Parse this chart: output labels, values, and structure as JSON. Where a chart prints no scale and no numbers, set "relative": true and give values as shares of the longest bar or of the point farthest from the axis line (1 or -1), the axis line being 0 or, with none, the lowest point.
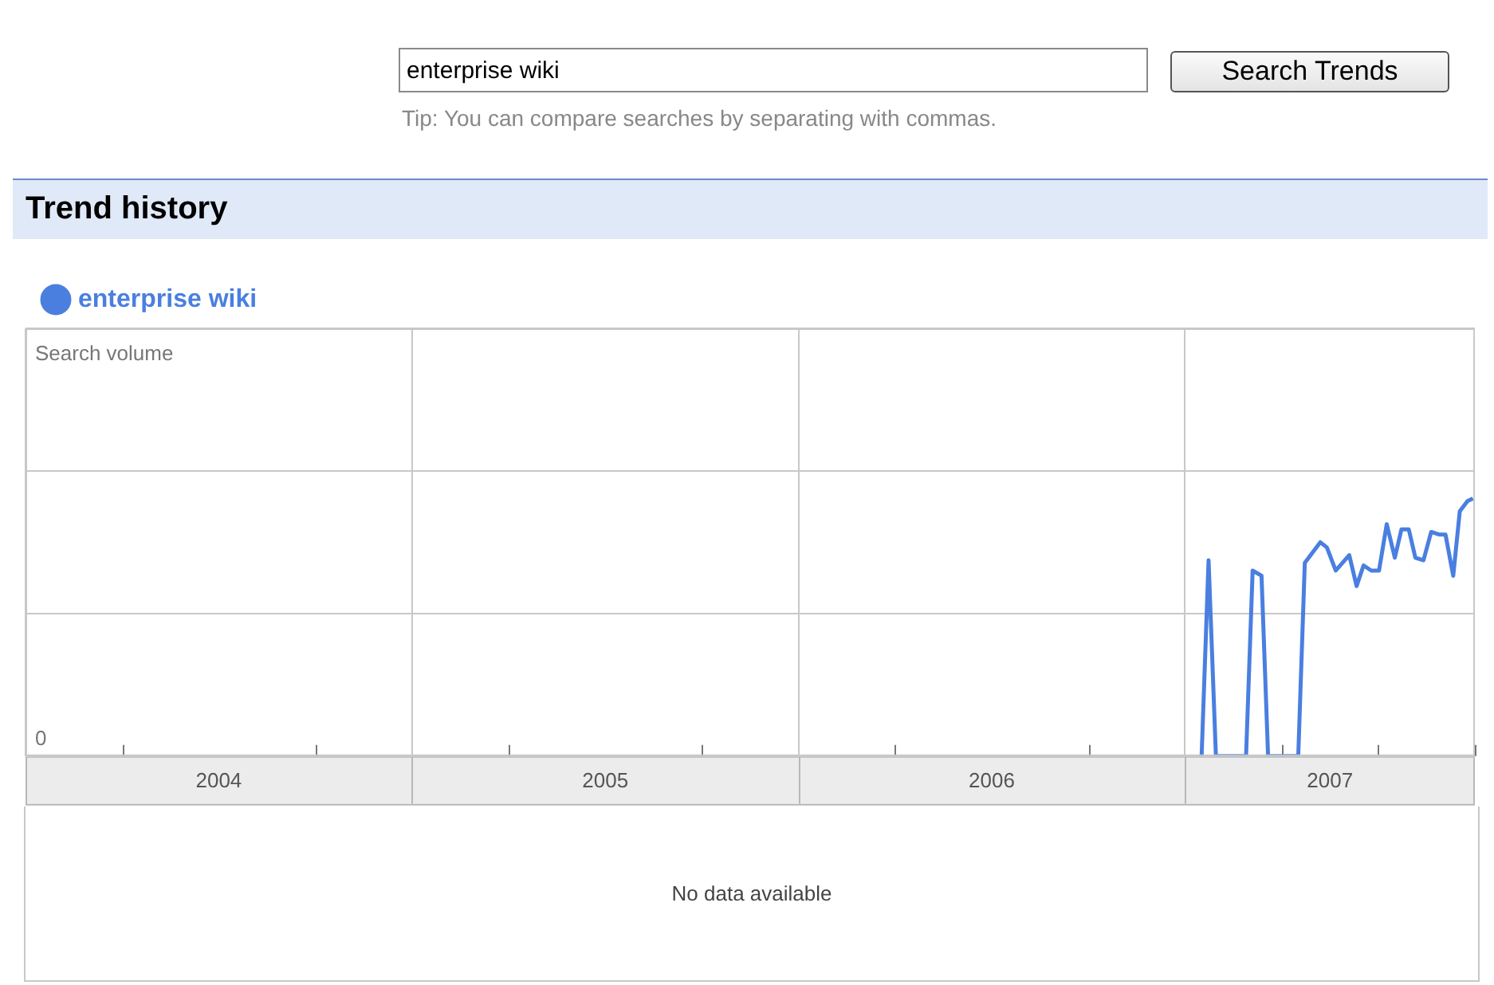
{
  "chart_data": {
    "type": "line",
    "title": "Trend history",
    "annotations": [
      "enterprise wiki",
      "Search Trends",
      "Tip: You can compare searches by separating with commas.",
      "0",
      "No data available",
      "Search volume"
    ],
    "relative": true,
    "xlim": [
      2004,
      2007.75
    ],
    "xticks": [
      {
        "value": 2004,
        "label": null
      },
      {
        "value": 2004.25,
        "label": null
      },
      {
        "value": 2004.5,
        "label": "2004"
      },
      {
        "value": 2004.75,
        "label": null
      },
      {
        "value": 2005,
        "label": null
      },
      {
        "value": 2005.25,
        "label": null
      },
      {
        "value": 2005.5,
        "label": "2005"
      },
      {
        "value": 2005.75,
        "label": null
      },
      {
        "value": 2006,
        "label": null
      },
      {
        "value": 2006.25,
        "label": null
      },
      {
        "value": 2006.5,
        "label": "2006"
      },
      {
        "value": 2006.75,
        "label": null
      },
      {
        "value": 2007,
        "label": null
      },
      {
        "value": 2007.25,
        "label": null
      },
      {
        "value": 2007.375,
        "label": "2007"
      },
      {
        "value": 2007.5,
        "label": null
      },
      {
        "value": 2007.75,
        "label": null
      }
    ],
    "grid": true,
    "legend": "top left",
    "marker": "none",
    "line_style": "solid",
    "series": [
      {
        "name": "enterprise wiki",
        "color": "#4a7fe0",
        "x": [
          2007.043,
          2007.061,
          2007.08,
          2007.158,
          2007.175,
          2007.198,
          2007.215,
          2007.293,
          2007.31,
          2007.35,
          2007.367,
          2007.39,
          2007.425,
          2007.444,
          2007.462,
          2007.482,
          2007.502,
          2007.522,
          2007.543,
          2007.56,
          2007.579,
          2007.596,
          2007.617,
          2007.637,
          2007.657,
          2007.674,
          2007.694,
          2007.711,
          2007.731,
          2007.745
        ],
        "values": [
          0,
          0.76,
          0,
          0,
          0.72,
          0.7,
          0,
          0,
          0.75,
          0.83,
          0.81,
          0.72,
          0.78,
          0.66,
          0.74,
          0.72,
          0.72,
          0.9,
          0.77,
          0.88,
          0.88,
          0.77,
          0.76,
          0.87,
          0.86,
          0.86,
          0.7,
          0.95,
          0.99,
          1
        ]
      }
    ]
  }
}
